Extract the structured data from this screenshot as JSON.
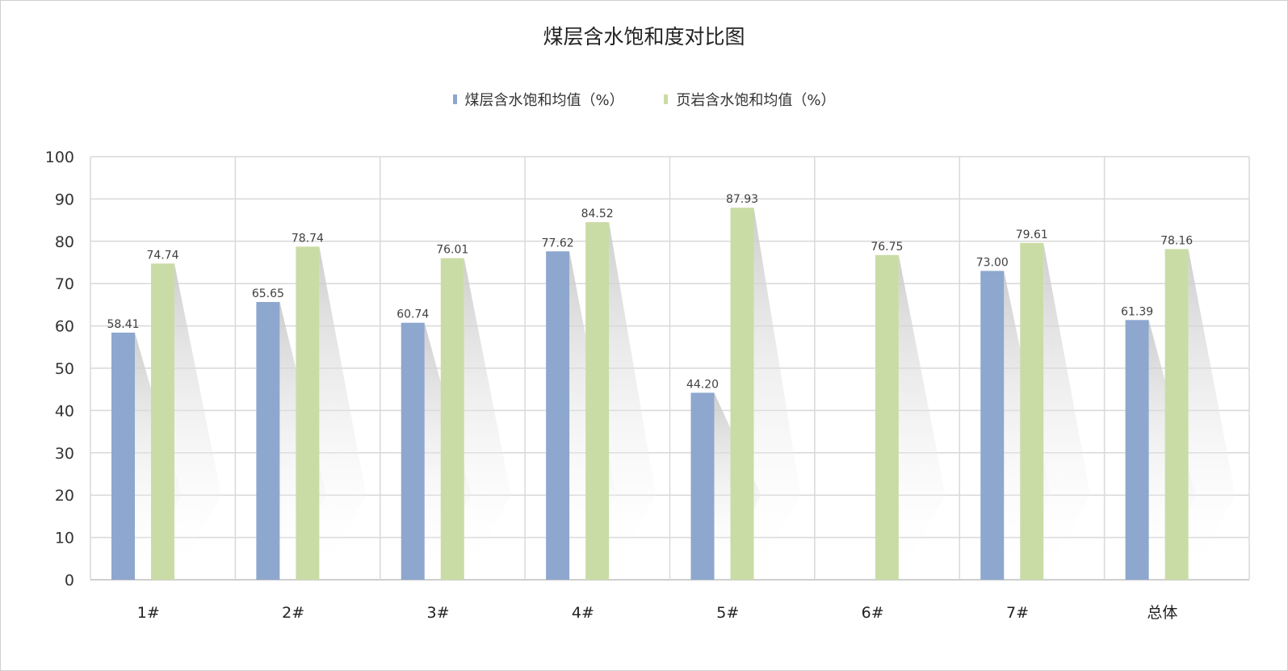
{
  "chart_data": {
    "type": "bar",
    "title": "煤层含水饱和度对比图",
    "categories": [
      "1#",
      "2#",
      "3#",
      "4#",
      "5#",
      "6#",
      "7#",
      "总体"
    ],
    "series": [
      {
        "name": "煤层含水饱和均值（%）",
        "color": "#8ea7ce",
        "values": [
          58.41,
          65.65,
          60.74,
          77.62,
          44.2,
          null,
          73.0,
          61.39
        ],
        "labels": [
          "58.41",
          "65.65",
          "60.74",
          "77.62",
          "44.20",
          "",
          "73.00",
          "61.39"
        ]
      },
      {
        "name": "页岩含水饱和均值（%）",
        "color": "#cadca5",
        "values": [
          74.74,
          78.74,
          76.01,
          84.52,
          87.93,
          76.75,
          79.61,
          78.16
        ],
        "labels": [
          "74.74",
          "78.74",
          "76.01",
          "84.52",
          "87.93",
          "76.75",
          "79.61",
          "78.16"
        ]
      }
    ],
    "ylim": [
      0,
      100
    ],
    "yticks": [
      "0",
      "10",
      "20",
      "30",
      "40",
      "50",
      "60",
      "70",
      "80",
      "90",
      "100"
    ],
    "grid": true,
    "legend_position": "top"
  }
}
